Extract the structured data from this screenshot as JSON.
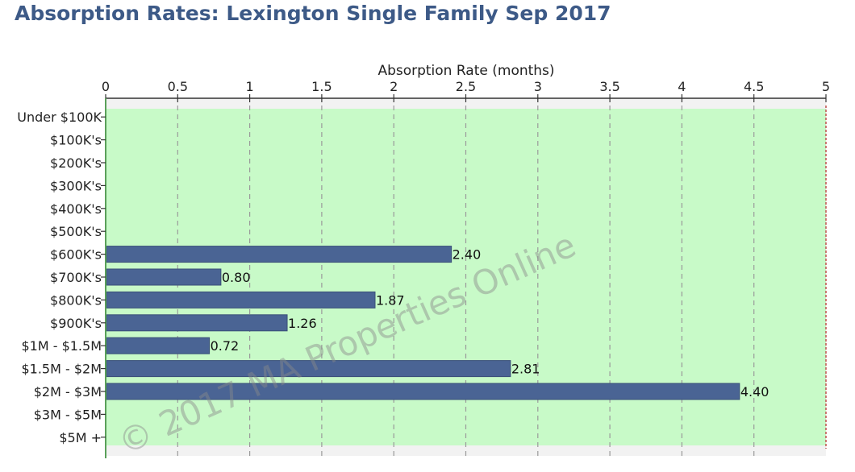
{
  "title": "Absorption Rates: Lexington Single Family Sep 2017",
  "watermark": "© 2017 MA Properties Online",
  "colors": {
    "title": "#3d5a87",
    "bar": "#4a6494",
    "plot_background": "#c8fac8",
    "grid": "#9a9a9a",
    "limit_line": "#c0504d"
  },
  "chart_data": {
    "type": "bar",
    "orientation": "horizontal",
    "title": "Absorption Rates: Lexington Single Family Sep 2017",
    "xlabel": "Absorption Rate (months)",
    "ylabel": "",
    "xlim": [
      0,
      5
    ],
    "x_ticks": [
      "0",
      "0.5",
      "1",
      "1.5",
      "2",
      "2.5",
      "3",
      "3.5",
      "4",
      "4.5",
      "5"
    ],
    "x_axis_position": "top",
    "grid": true,
    "categories": [
      "Under $100K",
      "$100K's",
      "$200K's",
      "$300K's",
      "$400K's",
      "$500K's",
      "$600K's",
      "$700K's",
      "$800K's",
      "$900K's",
      "$1M - $1.5M",
      "$1.5M - $2M",
      "$2M - $3M",
      "$3M - $5M",
      "$5M +"
    ],
    "values": [
      null,
      null,
      null,
      null,
      null,
      null,
      2.4,
      0.8,
      1.87,
      1.26,
      0.72,
      2.81,
      4.4,
      null,
      null
    ],
    "value_labels": [
      "",
      "",
      "",
      "",
      "",
      "",
      "2.40",
      "0.80",
      "1.87",
      "1.26",
      "0.72",
      "2.81",
      "4.40",
      "",
      ""
    ]
  }
}
